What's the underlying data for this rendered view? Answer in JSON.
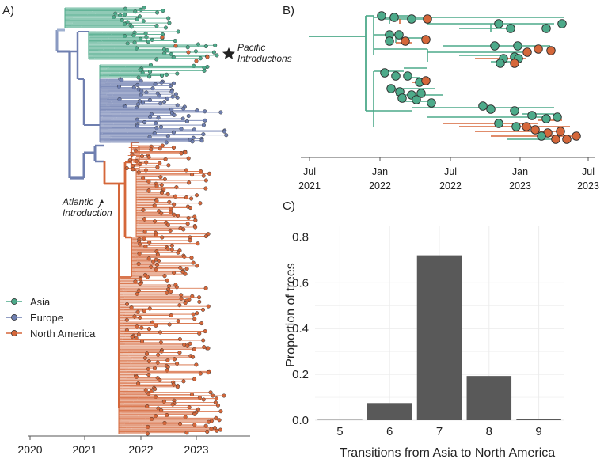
{
  "colors": {
    "asia": "#4daa8a",
    "europe": "#6f7fb0",
    "north_america": "#d5673a",
    "bar": "#595959",
    "grid": "#ececec",
    "axis": "#555555"
  },
  "panels": {
    "a": {
      "label": "A)"
    },
    "b": {
      "label": "B)"
    },
    "c": {
      "label": "C)"
    }
  },
  "tree_a": {
    "x_ticks": [
      "2020",
      "2021",
      "2022",
      "2023"
    ],
    "annotations": {
      "pacific_line1": "Pacific",
      "pacific_line2": "Introductions",
      "atlantic_line1": "Atlantic",
      "atlantic_line2": "Introduction"
    },
    "legend": [
      {
        "name": "Asia",
        "color_key": "asia"
      },
      {
        "name": "Europe",
        "color_key": "europe"
      },
      {
        "name": "North America",
        "color_key": "north_america"
      }
    ]
  },
  "tree_b": {
    "x_ticks": [
      {
        "month": "Jul",
        "year": "2021"
      },
      {
        "month": "Jan",
        "year": "2022"
      },
      {
        "month": "Jul",
        "year": "2022"
      },
      {
        "month": "Jan",
        "year": "2023"
      },
      {
        "month": "Jul",
        "year": "2023"
      }
    ]
  },
  "chart_data": {
    "type": "bar",
    "title": "",
    "categories": [
      "5",
      "6",
      "7",
      "8",
      "9"
    ],
    "values": [
      0.0,
      0.075,
      0.72,
      0.193,
      0.005
    ],
    "xlabel": "Transitions from Asia to North America",
    "ylabel": "Proportion of trees",
    "ylim": [
      0,
      0.85
    ],
    "y_ticks": [
      "0.0",
      "0.2",
      "0.4",
      "0.6",
      "0.8"
    ],
    "y_tick_values": [
      0,
      0.2,
      0.4,
      0.6,
      0.8
    ],
    "grid": true
  }
}
